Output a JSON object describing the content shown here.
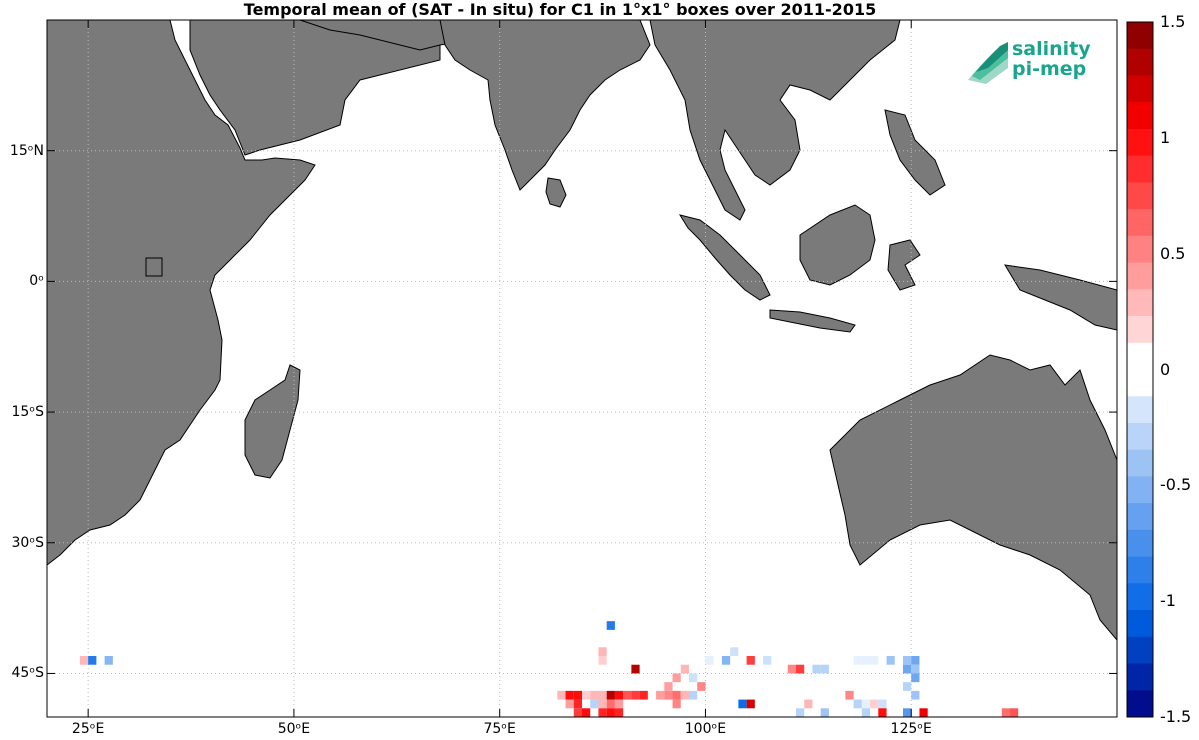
{
  "title": "Temporal mean of (SAT - In situ) for C1 in 1°x1° boxes over 2011-2015",
  "logo": {
    "line1": "salinity",
    "line2": "pi-mep",
    "color": "#1aa58c"
  },
  "axes": {
    "x_ticks": [
      {
        "lon": 25,
        "label": "25ᵒE"
      },
      {
        "lon": 50,
        "label": "50ᵒE"
      },
      {
        "lon": 75,
        "label": "75ᵒE"
      },
      {
        "lon": 100,
        "label": "100ᵒE"
      },
      {
        "lon": 125,
        "label": "125ᵒE"
      }
    ],
    "y_ticks": [
      {
        "lat": 15,
        "label": "15ᵒN"
      },
      {
        "lat": 0,
        "label": "0ᵒ"
      },
      {
        "lat": -15,
        "label": "15ᵒS"
      },
      {
        "lat": -30,
        "label": "30ᵒS"
      },
      {
        "lat": -45,
        "label": "45ᵒS"
      }
    ],
    "lon_range": [
      20,
      150
    ],
    "lat_range": [
      -50,
      30
    ],
    "grid": true
  },
  "colorbar": {
    "min": -1.5,
    "max": 1.5,
    "tick_labels": [
      "1.5",
      "1",
      "0.5",
      "0",
      "-0.5",
      "-1",
      "-1.5"
    ],
    "tick_values": [
      1.5,
      1,
      0.5,
      0,
      -0.5,
      -1,
      -1.5
    ]
  },
  "colors": {
    "land": "#7a7a7a",
    "ocean": "#ffffff",
    "coast": "#000000"
  },
  "chart_data": {
    "type": "heatmap",
    "title": "Temporal mean of (SAT - In situ) for C1 in 1°x1° boxes over 2011-2015",
    "xlabel": "",
    "ylabel": "",
    "units": "",
    "cells": [
      {
        "lon": 24.5,
        "lat": -43.5,
        "value": 0.3
      },
      {
        "lon": 25.5,
        "lat": -43.5,
        "value": -0.9
      },
      {
        "lon": 27.5,
        "lat": -43.5,
        "value": -0.5
      },
      {
        "lon": 88.5,
        "lat": -39.5,
        "value": -0.9
      },
      {
        "lon": 87.5,
        "lat": -42.5,
        "value": 0.3
      },
      {
        "lon": 87.5,
        "lat": -43.5,
        "value": 0.2
      },
      {
        "lon": 91.5,
        "lat": -44.5,
        "value": 1.3
      },
      {
        "lon": 100.5,
        "lat": -43.5,
        "value": -0.1
      },
      {
        "lon": 102.5,
        "lat": -43.5,
        "value": -0.5
      },
      {
        "lon": 103.5,
        "lat": -42.5,
        "value": -0.2
      },
      {
        "lon": 105.5,
        "lat": -43.5,
        "value": 0.8
      },
      {
        "lon": 107.5,
        "lat": -43.5,
        "value": -0.2
      },
      {
        "lon": 110.5,
        "lat": -44.5,
        "value": 0.5
      },
      {
        "lon": 111.5,
        "lat": -44.5,
        "value": 0.8
      },
      {
        "lon": 113.5,
        "lat": -44.5,
        "value": -0.3
      },
      {
        "lon": 114.5,
        "lat": -44.5,
        "value": -0.3
      },
      {
        "lon": 118.5,
        "lat": -43.5,
        "value": -0.1
      },
      {
        "lon": 119.5,
        "lat": -43.5,
        "value": -0.1
      },
      {
        "lon": 120.5,
        "lat": -43.5,
        "value": -0.1
      },
      {
        "lon": 122.5,
        "lat": -43.5,
        "value": -0.4
      },
      {
        "lon": 124.5,
        "lat": -43.5,
        "value": -0.4
      },
      {
        "lon": 125.5,
        "lat": -43.5,
        "value": -0.6
      },
      {
        "lon": 124.5,
        "lat": -44.5,
        "value": -0.6
      },
      {
        "lon": 125.5,
        "lat": -44.5,
        "value": -0.4
      },
      {
        "lon": 125.5,
        "lat": -45.5,
        "value": -0.6
      },
      {
        "lon": 82.5,
        "lat": -47.5,
        "value": 0.3
      },
      {
        "lon": 83.5,
        "lat": -47.5,
        "value": 1.0
      },
      {
        "lon": 84.5,
        "lat": -47.5,
        "value": 1.0
      },
      {
        "lon": 85.5,
        "lat": -47.5,
        "value": 0.2
      },
      {
        "lon": 86.5,
        "lat": -47.5,
        "value": 0.3
      },
      {
        "lon": 87.5,
        "lat": -47.5,
        "value": 0.3
      },
      {
        "lon": 88.5,
        "lat": -47.5,
        "value": 1.3
      },
      {
        "lon": 89.5,
        "lat": -47.5,
        "value": 1.0
      },
      {
        "lon": 90.5,
        "lat": -47.5,
        "value": 0.7
      },
      {
        "lon": 91.5,
        "lat": -47.5,
        "value": 0.8
      },
      {
        "lon": 92.5,
        "lat": -47.5,
        "value": 0.9
      },
      {
        "lon": 94.5,
        "lat": -47.5,
        "value": 0.4
      },
      {
        "lon": 95.5,
        "lat": -47.5,
        "value": 0.5
      },
      {
        "lon": 96.5,
        "lat": -47.5,
        "value": 0.6
      },
      {
        "lon": 97.5,
        "lat": -47.5,
        "value": 0.3
      },
      {
        "lon": 98.5,
        "lat": -47.5,
        "value": -0.3
      },
      {
        "lon": 99.5,
        "lat": -46.5,
        "value": 0.5
      },
      {
        "lon": 95.5,
        "lat": -46.5,
        "value": 0.4
      },
      {
        "lon": 96.5,
        "lat": -45.5,
        "value": 0.4
      },
      {
        "lon": 97.5,
        "lat": -44.5,
        "value": 0.3
      },
      {
        "lon": 98.5,
        "lat": -45.5,
        "value": -0.2
      },
      {
        "lon": 83.5,
        "lat": -48.5,
        "value": 0.4
      },
      {
        "lon": 84.5,
        "lat": -48.5,
        "value": 0.9
      },
      {
        "lon": 86.5,
        "lat": -48.5,
        "value": -0.3
      },
      {
        "lon": 87.5,
        "lat": -48.5,
        "value": 0.3
      },
      {
        "lon": 88.5,
        "lat": -48.5,
        "value": 0.6
      },
      {
        "lon": 89.5,
        "lat": -48.5,
        "value": 0.4
      },
      {
        "lon": 96.5,
        "lat": -48.5,
        "value": 0.5
      },
      {
        "lon": 84.5,
        "lat": -49.5,
        "value": 0.8
      },
      {
        "lon": 85.5,
        "lat": -49.5,
        "value": 1.0
      },
      {
        "lon": 87.5,
        "lat": -49.5,
        "value": 0.9
      },
      {
        "lon": 88.5,
        "lat": -49.5,
        "value": 1.0
      },
      {
        "lon": 89.5,
        "lat": -49.5,
        "value": 0.9
      },
      {
        "lon": 104.5,
        "lat": -48.5,
        "value": -1.0
      },
      {
        "lon": 105.5,
        "lat": -48.5,
        "value": 1.2
      },
      {
        "lon": 112.5,
        "lat": -48.5,
        "value": 0.3
      },
      {
        "lon": 111.5,
        "lat": -49.5,
        "value": -0.3
      },
      {
        "lon": 114.5,
        "lat": -49.5,
        "value": -0.4
      },
      {
        "lon": 117.5,
        "lat": -47.5,
        "value": 0.5
      },
      {
        "lon": 118.5,
        "lat": -48.5,
        "value": -0.3
      },
      {
        "lon": 119.5,
        "lat": -48.5,
        "value": -0.1
      },
      {
        "lon": 120.5,
        "lat": -48.5,
        "value": 0.2
      },
      {
        "lon": 119.5,
        "lat": -49.5,
        "value": -0.3
      },
      {
        "lon": 121.5,
        "lat": -48.5,
        "value": -0.2
      },
      {
        "lon": 121.5,
        "lat": -49.5,
        "value": 1.0
      },
      {
        "lon": 124.5,
        "lat": -46.5,
        "value": -0.3
      },
      {
        "lon": 125.5,
        "lat": -47.5,
        "value": -0.4
      },
      {
        "lon": 124.5,
        "lat": -49.5,
        "value": -0.7
      },
      {
        "lon": 126.5,
        "lat": -49.5,
        "value": 1.1
      },
      {
        "lon": 136.5,
        "lat": -49.5,
        "value": 0.6
      },
      {
        "lon": 137.5,
        "lat": -49.5,
        "value": 0.7
      }
    ]
  }
}
